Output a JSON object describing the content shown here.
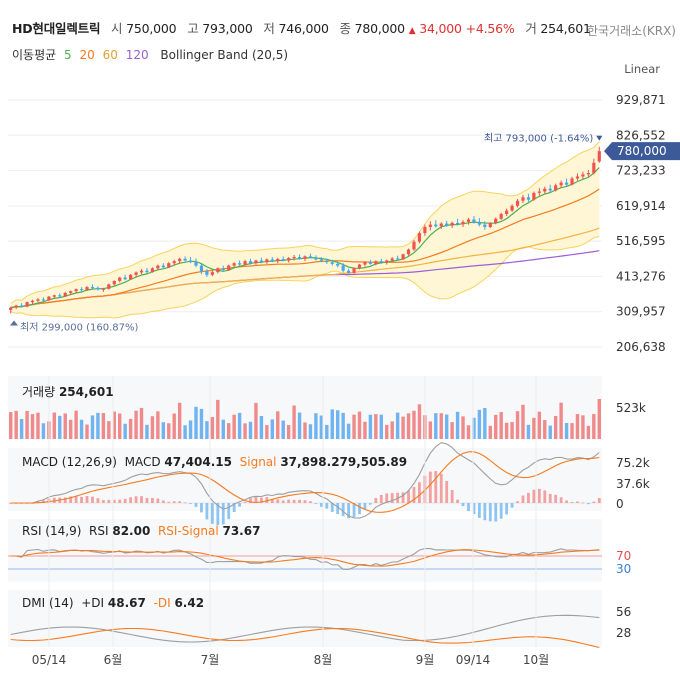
{
  "header": {
    "name": "HD현대일렉트릭",
    "open_label": "시",
    "open": "750,000",
    "high_label": "고",
    "high": "793,000",
    "low_label": "저",
    "low": "746,000",
    "close_label": "종",
    "close": "780,000",
    "change_arrow": "▲",
    "change": "34,000",
    "change_pct": "+4.56%",
    "volume_label": "거",
    "volume": "254,601",
    "exchange": "한국거래소(KRX)"
  },
  "overlay": {
    "ma_label": "이동평균",
    "ma5": "5",
    "ma20": "20",
    "ma60": "60",
    "ma120": "120",
    "bb_label": "Bollinger Band (20,5)",
    "scale_mode": "Linear"
  },
  "price_axis": {
    "ticks": [
      "929,871",
      "826,552",
      "723,233",
      "619,914",
      "516,595",
      "413,276",
      "309,957",
      "206,638"
    ],
    "current_tag": "780,000",
    "high_annot": "최고 793,000 (-1.64%)",
    "low_annot": "최저 299,000 (160.87%)"
  },
  "volume_panel": {
    "label": "거래량",
    "value": "254,601",
    "tick": "523k"
  },
  "macd_panel": {
    "label": "MACD (12,26,9)",
    "macd_label": "MACD",
    "macd_value": "47,404.15",
    "signal_label": "Signal",
    "signal_value": "37,898.279,505.89",
    "ticks": [
      "75.2k",
      "37.6k",
      "0"
    ]
  },
  "rsi_panel": {
    "label": "RSI (14,9)",
    "rsi_label": "RSI",
    "rsi_value": "82.00",
    "signal_label": "RSI-Signal",
    "signal_value": "73.67",
    "ticks": [
      "70",
      "30"
    ]
  },
  "dmi_panel": {
    "label": "DMI (14)",
    "pdi_label": "+DI",
    "pdi_value": "48.67",
    "mdi_label": "-DI",
    "mdi_value": "6.42",
    "ticks": [
      "56",
      "28"
    ]
  },
  "x_axis": {
    "ticks": [
      "05/14",
      "6월",
      "7월",
      "8월",
      "9월",
      "09/14",
      "10월"
    ]
  },
  "colors": {
    "up": "#ef5350",
    "down": "#42a5f5",
    "ma5": "#4caf50",
    "ma20": "#f57c20",
    "ma60": "#f5b041",
    "ma120": "#9c5fd6",
    "bb_fill": "#fff6d5",
    "bb_line": "#f7d35c",
    "tag": "#3d5a98"
  },
  "chart_data": {
    "type": "candlestick",
    "ylim": [
      206638,
      929871
    ],
    "candles": [
      [
        315000,
        325000,
        305000,
        322000
      ],
      [
        322000,
        330000,
        318000,
        328000
      ],
      [
        328000,
        335000,
        322000,
        325000
      ],
      [
        325000,
        340000,
        323000,
        338000
      ],
      [
        338000,
        345000,
        332000,
        342000
      ],
      [
        342000,
        350000,
        338000,
        346000
      ],
      [
        346000,
        352000,
        340000,
        344000
      ],
      [
        344000,
        356000,
        342000,
        354000
      ],
      [
        354000,
        360000,
        348000,
        358000
      ],
      [
        358000,
        364000,
        352000,
        355000
      ],
      [
        355000,
        368000,
        353000,
        365000
      ],
      [
        365000,
        372000,
        360000,
        370000
      ],
      [
        370000,
        378000,
        364000,
        376000
      ],
      [
        376000,
        382000,
        370000,
        373000
      ],
      [
        373000,
        385000,
        371000,
        382000
      ],
      [
        382000,
        390000,
        376000,
        380000
      ],
      [
        380000,
        384000,
        372000,
        375000
      ],
      [
        375000,
        380000,
        368000,
        377000
      ],
      [
        377000,
        392000,
        375000,
        390000
      ],
      [
        390000,
        402000,
        386000,
        400000
      ],
      [
        400000,
        412000,
        396000,
        410000
      ],
      [
        410000,
        418000,
        402000,
        405000
      ],
      [
        405000,
        420000,
        403000,
        418000
      ],
      [
        418000,
        428000,
        412000,
        425000
      ],
      [
        425000,
        435000,
        420000,
        430000
      ],
      [
        430000,
        438000,
        422000,
        426000
      ],
      [
        426000,
        440000,
        424000,
        437000
      ],
      [
        437000,
        448000,
        432000,
        445000
      ],
      [
        445000,
        452000,
        438000,
        440000
      ],
      [
        440000,
        455000,
        438000,
        452000
      ],
      [
        452000,
        462000,
        446000,
        458000
      ],
      [
        458000,
        468000,
        450000,
        465000
      ],
      [
        465000,
        472000,
        458000,
        460000
      ],
      [
        460000,
        470000,
        452000,
        455000
      ],
      [
        455000,
        466000,
        440000,
        445000
      ],
      [
        445000,
        452000,
        420000,
        428000
      ],
      [
        428000,
        435000,
        412000,
        418000
      ],
      [
        418000,
        430000,
        414000,
        426000
      ],
      [
        426000,
        440000,
        422000,
        437000
      ],
      [
        437000,
        445000,
        428000,
        432000
      ],
      [
        432000,
        448000,
        430000,
        445000
      ],
      [
        445000,
        455000,
        440000,
        452000
      ],
      [
        452000,
        460000,
        444000,
        448000
      ],
      [
        448000,
        462000,
        446000,
        458000
      ],
      [
        458000,
        465000,
        448000,
        452000
      ],
      [
        452000,
        462000,
        448000,
        460000
      ],
      [
        460000,
        468000,
        452000,
        455000
      ],
      [
        455000,
        466000,
        450000,
        463000
      ],
      [
        463000,
        470000,
        455000,
        458000
      ],
      [
        458000,
        468000,
        452000,
        464000
      ],
      [
        464000,
        472000,
        458000,
        460000
      ],
      [
        460000,
        470000,
        454000,
        467000
      ],
      [
        467000,
        476000,
        460000,
        470000
      ],
      [
        470000,
        478000,
        462000,
        465000
      ],
      [
        465000,
        475000,
        458000,
        472000
      ],
      [
        472000,
        480000,
        466000,
        468000
      ],
      [
        468000,
        475000,
        460000,
        463000
      ],
      [
        463000,
        470000,
        455000,
        459000
      ],
      [
        459000,
        466000,
        450000,
        455000
      ],
      [
        455000,
        462000,
        445000,
        450000
      ],
      [
        450000,
        458000,
        440000,
        445000
      ],
      [
        445000,
        452000,
        425000,
        430000
      ],
      [
        430000,
        436000,
        418000,
        424000
      ],
      [
        424000,
        440000,
        422000,
        438000
      ],
      [
        438000,
        450000,
        434000,
        448000
      ],
      [
        448000,
        458000,
        442000,
        455000
      ],
      [
        455000,
        462000,
        448000,
        450000
      ],
      [
        450000,
        460000,
        446000,
        458000
      ],
      [
        458000,
        465000,
        450000,
        455000
      ],
      [
        455000,
        463000,
        448000,
        460000
      ],
      [
        460000,
        470000,
        455000,
        466000
      ],
      [
        466000,
        474000,
        460000,
        463000
      ],
      [
        463000,
        480000,
        462000,
        478000
      ],
      [
        478000,
        495000,
        474000,
        492000
      ],
      [
        492000,
        520000,
        488000,
        515000
      ],
      [
        515000,
        545000,
        510000,
        540000
      ],
      [
        540000,
        565000,
        532000,
        558000
      ],
      [
        558000,
        575000,
        548000,
        565000
      ],
      [
        565000,
        578000,
        556000,
        560000
      ],
      [
        560000,
        572000,
        552000,
        568000
      ],
      [
        568000,
        576000,
        558000,
        562000
      ],
      [
        562000,
        574000,
        555000,
        570000
      ],
      [
        570000,
        582000,
        562000,
        566000
      ],
      [
        566000,
        578000,
        558000,
        573000
      ],
      [
        573000,
        585000,
        565000,
        580000
      ],
      [
        580000,
        590000,
        568000,
        572000
      ],
      [
        572000,
        584000,
        560000,
        565000
      ],
      [
        565000,
        575000,
        550000,
        558000
      ],
      [
        558000,
        572000,
        555000,
        570000
      ],
      [
        570000,
        586000,
        566000,
        582000
      ],
      [
        582000,
        600000,
        578000,
        596000
      ],
      [
        596000,
        612000,
        590000,
        606000
      ],
      [
        606000,
        625000,
        602000,
        620000
      ],
      [
        620000,
        640000,
        615000,
        635000
      ],
      [
        635000,
        652000,
        628000,
        645000
      ],
      [
        645000,
        655000,
        632000,
        638000
      ],
      [
        638000,
        662000,
        635000,
        658000
      ],
      [
        658000,
        672000,
        650000,
        662000
      ],
      [
        662000,
        676000,
        656000,
        670000
      ],
      [
        670000,
        682000,
        660000,
        665000
      ],
      [
        665000,
        685000,
        662000,
        680000
      ],
      [
        680000,
        694000,
        672000,
        688000
      ],
      [
        688000,
        700000,
        678000,
        682000
      ],
      [
        682000,
        705000,
        680000,
        700000
      ],
      [
        700000,
        715000,
        694000,
        706000
      ],
      [
        706000,
        720000,
        698000,
        712000
      ],
      [
        712000,
        725000,
        704000,
        716000
      ],
      [
        716000,
        758000,
        712000,
        746000
      ],
      [
        750000,
        793000,
        746000,
        780000
      ]
    ]
  }
}
